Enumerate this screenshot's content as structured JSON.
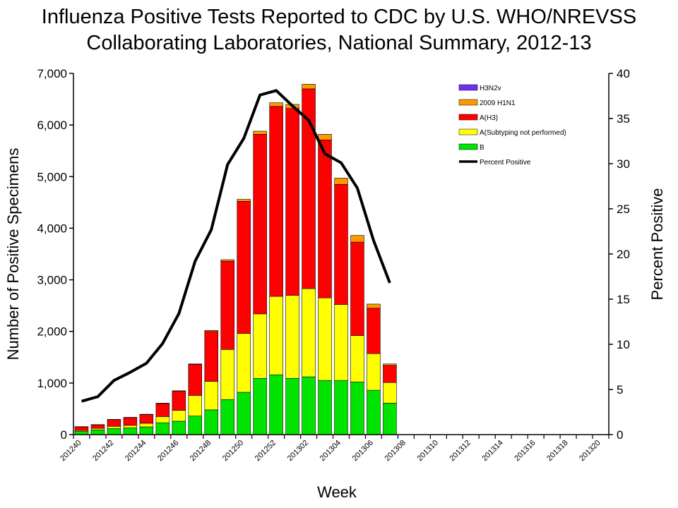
{
  "chart_data": {
    "type": "bar",
    "stacked": true,
    "title_lines": [
      "Influenza Positive Tests Reported to CDC by U.S. WHO/NREVSS",
      "Collaborating Laboratories, National Summary, 2012-13"
    ],
    "xlabel": "Week",
    "ylabel": "Number of Positive Specimens",
    "y2label": "Percent Positive",
    "ylim": [
      0,
      7000
    ],
    "y2lim": [
      0,
      40
    ],
    "yticks": [
      "0",
      "1,000",
      "2,000",
      "3,000",
      "4,000",
      "5,000",
      "6,000",
      "7,000"
    ],
    "y2ticks": [
      "0",
      "5",
      "10",
      "15",
      "20",
      "25",
      "30",
      "35",
      "40"
    ],
    "grid": false,
    "legend_position": "top-right",
    "categories": [
      "201240",
      "201241",
      "201242",
      "201243",
      "201244",
      "201245",
      "201246",
      "201247",
      "201248",
      "201249",
      "201250",
      "201251",
      "201252",
      "201301",
      "201302",
      "201303",
      "201304",
      "201305",
      "201306",
      "201307",
      "201308",
      "201309",
      "201310",
      "201311",
      "201312",
      "201313",
      "201314",
      "201315",
      "201316",
      "201317",
      "201318",
      "201319",
      "201320"
    ],
    "x_tick_labels": [
      "201240",
      "201242",
      "201244",
      "201246",
      "201248",
      "201250",
      "201252",
      "201302",
      "201304",
      "201306",
      "201308",
      "201310",
      "201312",
      "201314",
      "201316",
      "201318",
      "201320"
    ],
    "series": [
      {
        "name": "B",
        "color": "#00e400",
        "values": [
          60,
          90,
          120,
          130,
          150,
          230,
          260,
          360,
          480,
          680,
          820,
          1090,
          1160,
          1090,
          1120,
          1050,
          1050,
          1020,
          860,
          610,
          0,
          0,
          0,
          0,
          0,
          0,
          0,
          0,
          0,
          0,
          0,
          0,
          0
        ]
      },
      {
        "name": "A(Subtyping not performed)",
        "color": "#ffff00",
        "values": [
          20,
          30,
          40,
          50,
          70,
          120,
          210,
          400,
          550,
          970,
          1140,
          1250,
          1520,
          1610,
          1710,
          1600,
          1470,
          900,
          710,
          400,
          0,
          0,
          0,
          0,
          0,
          0,
          0,
          0,
          0,
          0,
          0,
          0,
          0
        ]
      },
      {
        "name": "A(H3)",
        "color": "#ff0000",
        "values": [
          70,
          70,
          130,
          150,
          170,
          250,
          370,
          600,
          970,
          1710,
          2560,
          3480,
          3680,
          3620,
          3870,
          3060,
          2330,
          1810,
          880,
          330,
          0,
          0,
          0,
          0,
          0,
          0,
          0,
          0,
          0,
          0,
          0,
          0,
          0
        ]
      },
      {
        "name": "2009 H1N1",
        "color": "#ff9900",
        "values": [
          5,
          5,
          5,
          5,
          5,
          10,
          10,
          10,
          20,
          30,
          40,
          60,
          70,
          80,
          90,
          110,
          120,
          130,
          80,
          30,
          0,
          0,
          0,
          0,
          0,
          0,
          0,
          0,
          0,
          0,
          0,
          0,
          0
        ]
      },
      {
        "name": "H3N2v",
        "color": "#6f2ff0",
        "values": [
          0,
          0,
          0,
          0,
          0,
          0,
          0,
          0,
          0,
          0,
          0,
          0,
          0,
          0,
          0,
          0,
          0,
          0,
          0,
          0,
          0,
          0,
          0,
          0,
          0,
          0,
          0,
          0,
          0,
          0,
          0,
          0,
          0
        ]
      }
    ],
    "line_series": {
      "name": "Percent Positive",
      "color": "#000000",
      "axis": "y2",
      "values": [
        3.7,
        4.2,
        6.0,
        6.9,
        7.9,
        10.1,
        13.4,
        19.2,
        22.7,
        29.9,
        32.8,
        37.6,
        38.1,
        36.4,
        34.8,
        31.1,
        30.1,
        27.3,
        21.5,
        16.8
      ]
    },
    "legend": [
      "H3N2v",
      "2009 H1N1",
      "A(H3)",
      "A(Subtyping not performed)",
      "B",
      "Percent Positive"
    ]
  }
}
